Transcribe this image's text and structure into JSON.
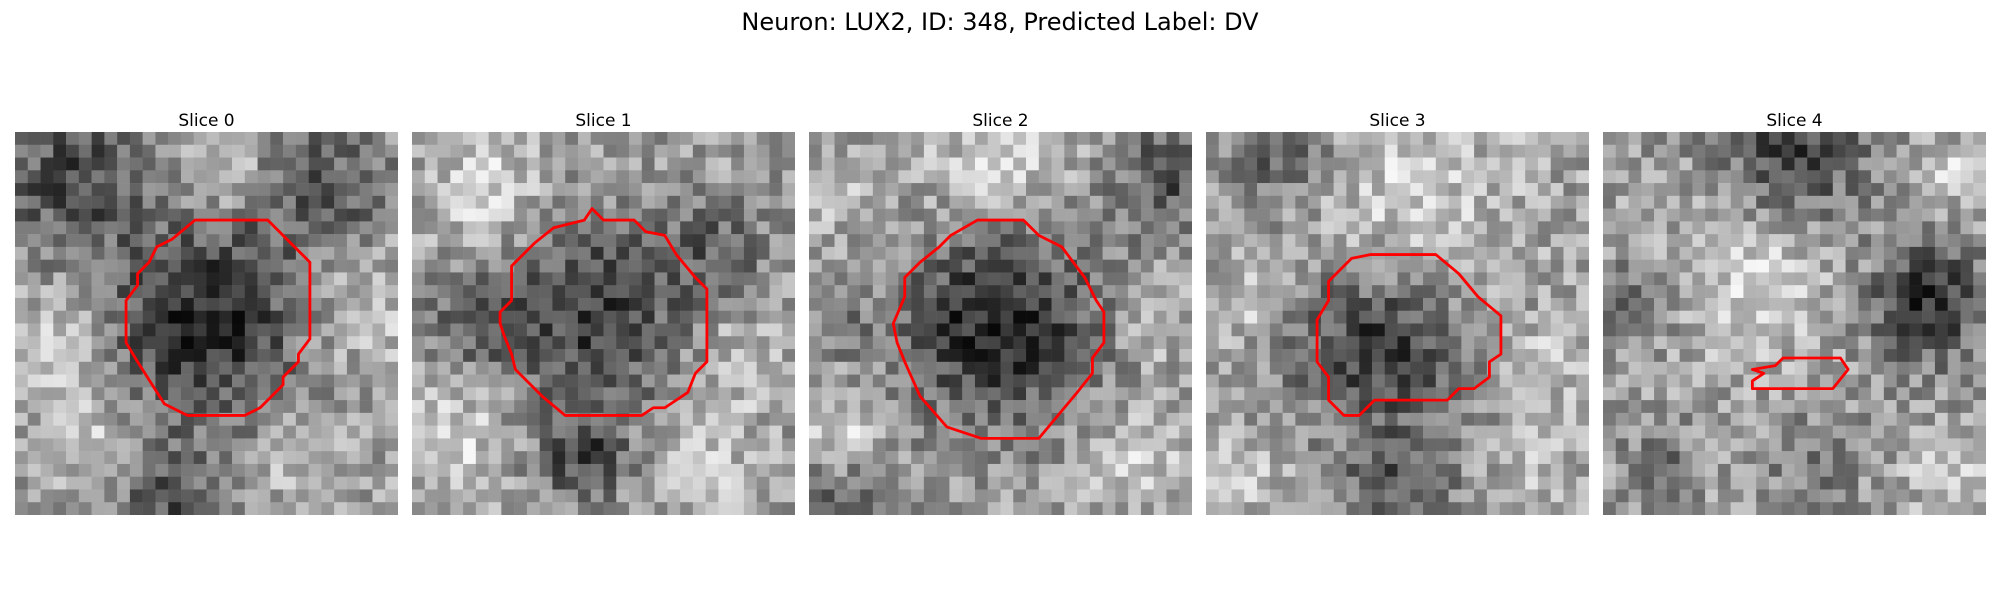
{
  "figure": {
    "title": "Neuron: LUX2, ID: 348, Predicted Label: DV",
    "contour_color": "#ff0000"
  },
  "slices": [
    {
      "title": "Slice 0",
      "seed": 11,
      "dark_blobs": [
        [
          0.5,
          0.5,
          0.25,
          0.9
        ],
        [
          0.15,
          0.12,
          0.2,
          0.6
        ],
        [
          0.8,
          0.15,
          0.18,
          0.5
        ],
        [
          0.4,
          0.97,
          0.15,
          0.5
        ]
      ],
      "light_blobs": [
        [
          0.55,
          0.1,
          0.1,
          0.4
        ],
        [
          0.1,
          0.55,
          0.15,
          0.3
        ],
        [
          0.9,
          0.45,
          0.15,
          0.35
        ],
        [
          0.2,
          0.8,
          0.12,
          0.3
        ],
        [
          0.75,
          0.85,
          0.12,
          0.3
        ]
      ],
      "contour": [
        [
          0.47,
          0.23
        ],
        [
          0.66,
          0.23
        ],
        [
          0.77,
          0.34
        ],
        [
          0.77,
          0.54
        ],
        [
          0.74,
          0.58
        ],
        [
          0.74,
          0.6
        ],
        [
          0.7,
          0.64
        ],
        [
          0.7,
          0.66
        ],
        [
          0.66,
          0.7
        ],
        [
          0.64,
          0.72
        ],
        [
          0.6,
          0.74
        ],
        [
          0.45,
          0.74
        ],
        [
          0.39,
          0.71
        ],
        [
          0.32,
          0.6
        ],
        [
          0.29,
          0.55
        ],
        [
          0.29,
          0.44
        ],
        [
          0.32,
          0.4
        ],
        [
          0.32,
          0.37
        ],
        [
          0.35,
          0.34
        ],
        [
          0.37,
          0.3
        ],
        [
          0.41,
          0.28
        ]
      ]
    },
    {
      "title": "Slice 1",
      "seed": 23,
      "dark_blobs": [
        [
          0.48,
          0.48,
          0.25,
          0.7
        ],
        [
          0.15,
          0.5,
          0.12,
          0.4
        ],
        [
          0.45,
          0.85,
          0.12,
          0.6
        ],
        [
          0.8,
          0.3,
          0.12,
          0.4
        ]
      ],
      "light_blobs": [
        [
          0.2,
          0.15,
          0.15,
          0.4
        ],
        [
          0.85,
          0.6,
          0.12,
          0.3
        ],
        [
          0.1,
          0.8,
          0.15,
          0.4
        ],
        [
          0.75,
          0.85,
          0.15,
          0.3
        ]
      ],
      "contour": [
        [
          0.37,
          0.25
        ],
        [
          0.45,
          0.23
        ],
        [
          0.47,
          0.2
        ],
        [
          0.5,
          0.23
        ],
        [
          0.58,
          0.23
        ],
        [
          0.61,
          0.26
        ],
        [
          0.66,
          0.27
        ],
        [
          0.69,
          0.32
        ],
        [
          0.74,
          0.38
        ],
        [
          0.77,
          0.41
        ],
        [
          0.77,
          0.6
        ],
        [
          0.74,
          0.63
        ],
        [
          0.72,
          0.68
        ],
        [
          0.66,
          0.72
        ],
        [
          0.63,
          0.72
        ],
        [
          0.6,
          0.74
        ],
        [
          0.4,
          0.74
        ],
        [
          0.34,
          0.69
        ],
        [
          0.27,
          0.62
        ],
        [
          0.26,
          0.58
        ],
        [
          0.24,
          0.53
        ],
        [
          0.23,
          0.5
        ],
        [
          0.23,
          0.47
        ],
        [
          0.26,
          0.44
        ],
        [
          0.26,
          0.35
        ],
        [
          0.32,
          0.29
        ]
      ]
    },
    {
      "title": "Slice 2",
      "seed": 37,
      "dark_blobs": [
        [
          0.5,
          0.5,
          0.25,
          0.9
        ],
        [
          0.95,
          0.1,
          0.15,
          0.6
        ],
        [
          0.1,
          0.95,
          0.12,
          0.4
        ],
        [
          0.08,
          0.5,
          0.08,
          0.3
        ]
      ],
      "light_blobs": [
        [
          0.5,
          0.08,
          0.18,
          0.4
        ],
        [
          0.1,
          0.15,
          0.1,
          0.3
        ],
        [
          0.1,
          0.8,
          0.1,
          0.45
        ],
        [
          0.85,
          0.85,
          0.12,
          0.35
        ],
        [
          0.9,
          0.5,
          0.1,
          0.3
        ]
      ],
      "contour": [
        [
          0.44,
          0.23
        ],
        [
          0.56,
          0.23
        ],
        [
          0.6,
          0.27
        ],
        [
          0.66,
          0.3
        ],
        [
          0.72,
          0.38
        ],
        [
          0.75,
          0.44
        ],
        [
          0.77,
          0.47
        ],
        [
          0.77,
          0.55
        ],
        [
          0.74,
          0.59
        ],
        [
          0.74,
          0.63
        ],
        [
          0.7,
          0.68
        ],
        [
          0.6,
          0.8
        ],
        [
          0.45,
          0.8
        ],
        [
          0.36,
          0.77
        ],
        [
          0.29,
          0.69
        ],
        [
          0.25,
          0.6
        ],
        [
          0.23,
          0.55
        ],
        [
          0.22,
          0.5
        ],
        [
          0.25,
          0.43
        ],
        [
          0.25,
          0.38
        ],
        [
          0.29,
          0.34
        ],
        [
          0.34,
          0.3
        ],
        [
          0.37,
          0.27
        ]
      ]
    },
    {
      "title": "Slice 3",
      "seed": 51,
      "dark_blobs": [
        [
          0.45,
          0.55,
          0.22,
          0.8
        ],
        [
          0.2,
          0.05,
          0.15,
          0.5
        ],
        [
          0.5,
          0.95,
          0.15,
          0.5
        ]
      ],
      "light_blobs": [
        [
          0.5,
          0.2,
          0.3,
          0.35
        ],
        [
          0.1,
          0.45,
          0.1,
          0.3
        ],
        [
          0.9,
          0.6,
          0.1,
          0.3
        ],
        [
          0.1,
          0.9,
          0.1,
          0.3
        ],
        [
          0.85,
          0.85,
          0.1,
          0.3
        ]
      ],
      "contour": [
        [
          0.38,
          0.33
        ],
        [
          0.43,
          0.32
        ],
        [
          0.6,
          0.32
        ],
        [
          0.66,
          0.37
        ],
        [
          0.71,
          0.43
        ],
        [
          0.77,
          0.48
        ],
        [
          0.77,
          0.58
        ],
        [
          0.74,
          0.6
        ],
        [
          0.74,
          0.64
        ],
        [
          0.7,
          0.67
        ],
        [
          0.66,
          0.67
        ],
        [
          0.63,
          0.7
        ],
        [
          0.44,
          0.7
        ],
        [
          0.4,
          0.74
        ],
        [
          0.36,
          0.74
        ],
        [
          0.32,
          0.7
        ],
        [
          0.32,
          0.64
        ],
        [
          0.29,
          0.6
        ],
        [
          0.29,
          0.49
        ],
        [
          0.32,
          0.44
        ],
        [
          0.32,
          0.39
        ]
      ]
    },
    {
      "title": "Slice 4",
      "seed": 67,
      "dark_blobs": [
        [
          0.5,
          0.05,
          0.18,
          0.7
        ],
        [
          0.85,
          0.45,
          0.15,
          0.8
        ],
        [
          0.08,
          0.45,
          0.1,
          0.4
        ],
        [
          0.15,
          0.85,
          0.1,
          0.3
        ],
        [
          0.55,
          0.85,
          0.12,
          0.3
        ]
      ],
      "light_blobs": [
        [
          0.4,
          0.4,
          0.2,
          0.4
        ],
        [
          0.9,
          0.1,
          0.08,
          0.35
        ],
        [
          0.9,
          0.9,
          0.1,
          0.3
        ]
      ],
      "contour": [
        [
          0.39,
          0.62
        ],
        [
          0.45,
          0.61
        ],
        [
          0.47,
          0.59
        ],
        [
          0.62,
          0.59
        ],
        [
          0.64,
          0.62
        ],
        [
          0.6,
          0.67
        ],
        [
          0.42,
          0.67
        ],
        [
          0.39,
          0.67
        ],
        [
          0.39,
          0.65
        ],
        [
          0.42,
          0.63
        ]
      ]
    }
  ]
}
